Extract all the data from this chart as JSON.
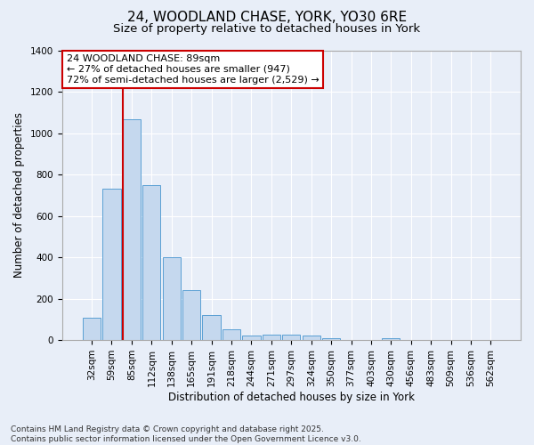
{
  "title1": "24, WOODLAND CHASE, YORK, YO30 6RE",
  "title2": "Size of property relative to detached houses in York",
  "xlabel": "Distribution of detached houses by size in York",
  "ylabel": "Number of detached properties",
  "categories": [
    "32sqm",
    "59sqm",
    "85sqm",
    "112sqm",
    "138sqm",
    "165sqm",
    "191sqm",
    "218sqm",
    "244sqm",
    "271sqm",
    "297sqm",
    "324sqm",
    "350sqm",
    "377sqm",
    "403sqm",
    "430sqm",
    "456sqm",
    "483sqm",
    "509sqm",
    "536sqm",
    "562sqm"
  ],
  "values": [
    110,
    730,
    1065,
    750,
    400,
    240,
    120,
    50,
    20,
    28,
    25,
    20,
    10,
    0,
    0,
    10,
    0,
    0,
    0,
    0,
    0
  ],
  "bar_color": "#c5d8ee",
  "bar_edge_color": "#5a9fd4",
  "property_line_index": 2,
  "property_line_color": "#cc0000",
  "annotation_text": "24 WOODLAND CHASE: 89sqm\n← 27% of detached houses are smaller (947)\n72% of semi-detached houses are larger (2,529) →",
  "annotation_box_color": "#ffffff",
  "annotation_box_edge_color": "#cc0000",
  "ylim": [
    0,
    1400
  ],
  "yticks": [
    0,
    200,
    400,
    600,
    800,
    1000,
    1200,
    1400
  ],
  "bg_color": "#e8eef8",
  "grid_color": "#ffffff",
  "footer_text": "Contains HM Land Registry data © Crown copyright and database right 2025.\nContains public sector information licensed under the Open Government Licence v3.0.",
  "title1_fontsize": 11,
  "title2_fontsize": 9.5,
  "axis_label_fontsize": 8.5,
  "tick_fontsize": 7.5,
  "annotation_fontsize": 8,
  "footer_fontsize": 6.5
}
